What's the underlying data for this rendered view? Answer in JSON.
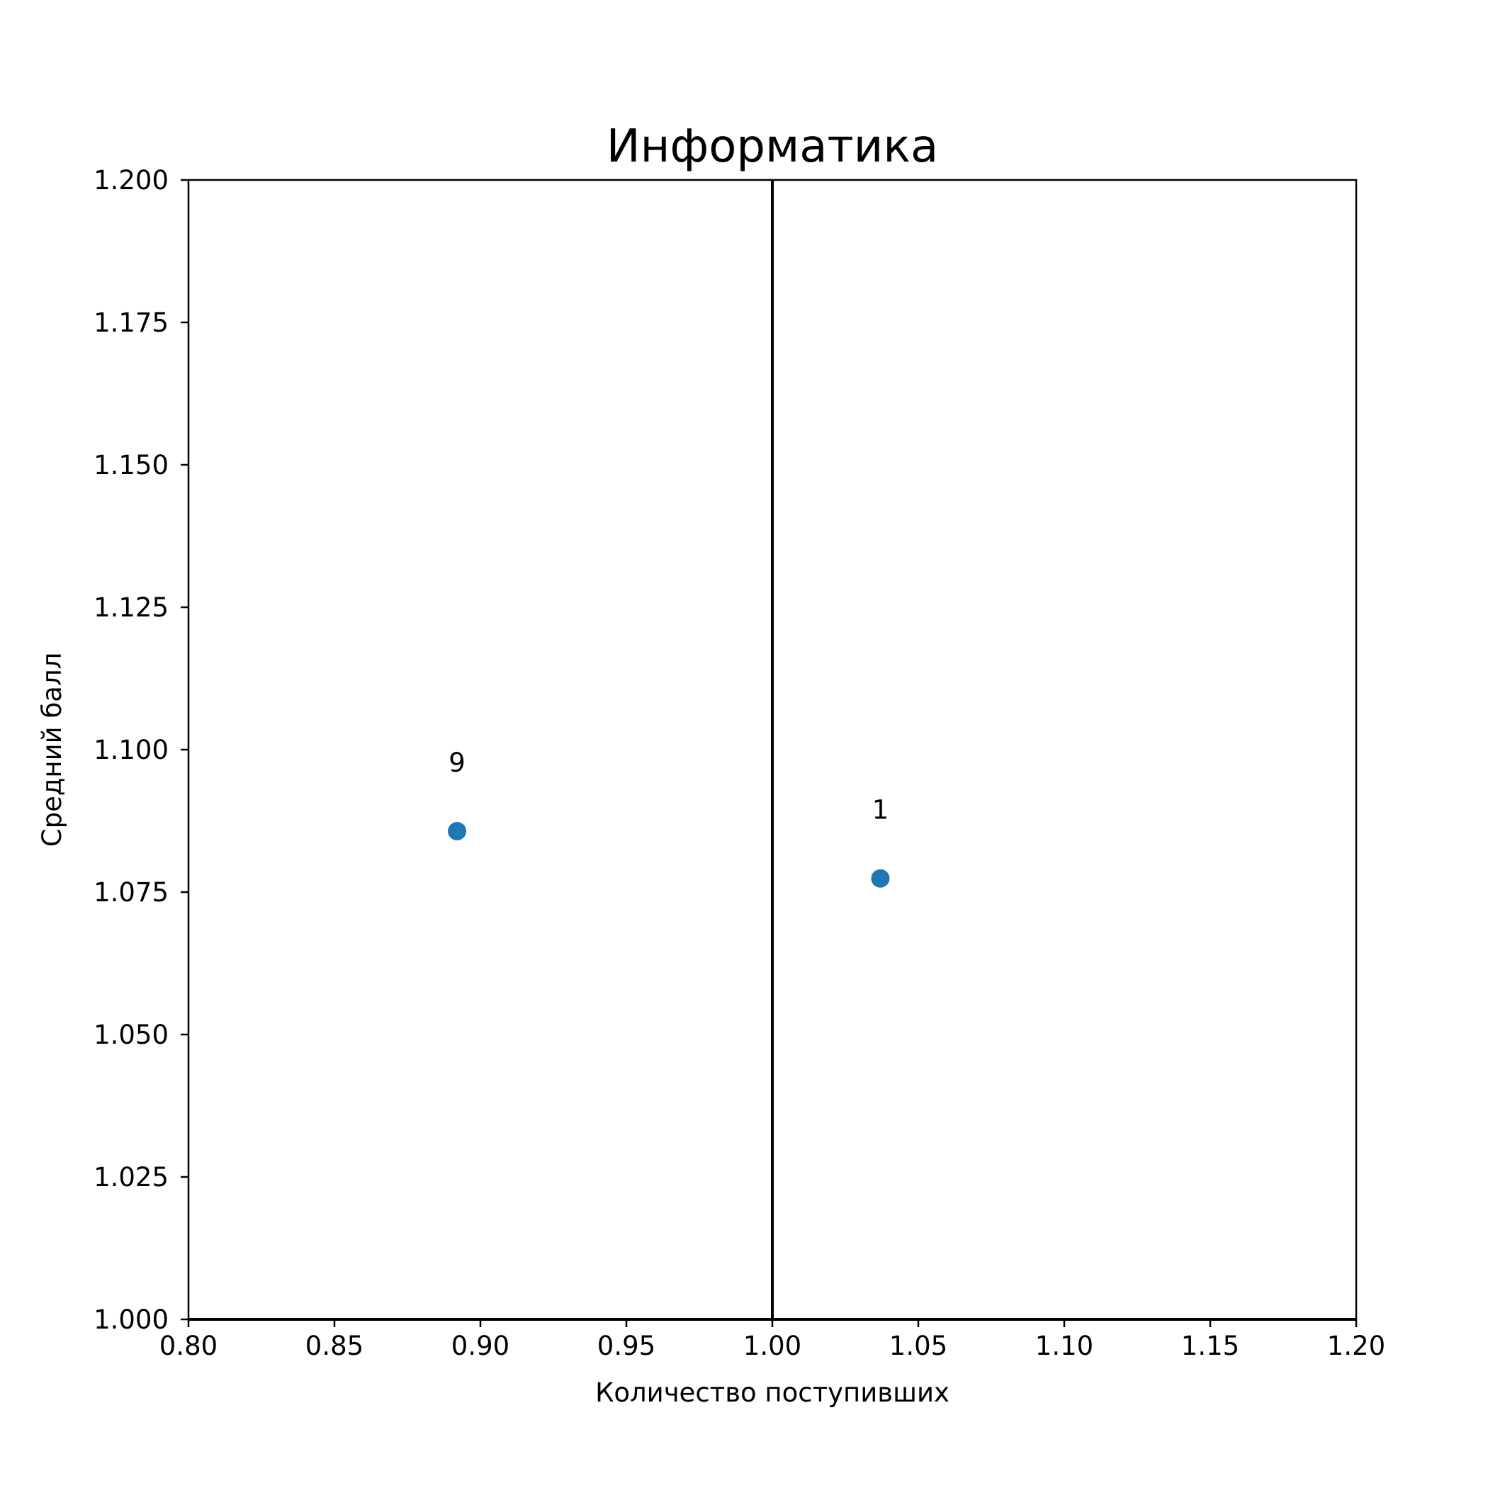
{
  "chart_data": {
    "type": "scatter",
    "title": "Информатика",
    "xlabel": "Количество поступивших",
    "ylabel": "Средний балл",
    "xlim": [
      0.8,
      1.2
    ],
    "ylim": [
      1.0,
      1.2
    ],
    "x_ticks": [
      "0.80",
      "0.85",
      "0.90",
      "0.95",
      "1.00",
      "1.05",
      "1.10",
      "1.15",
      "1.20"
    ],
    "y_ticks": [
      "1.000",
      "1.025",
      "1.050",
      "1.075",
      "1.100",
      "1.125",
      "1.150",
      "1.175",
      "1.200"
    ],
    "grid": false,
    "reference_lines": [
      {
        "orientation": "vertical",
        "x": 1.0
      },
      {
        "orientation": "horizontal",
        "y": 1.0
      }
    ],
    "points": [
      {
        "x": 0.892,
        "y": 1.0857,
        "label": "9"
      },
      {
        "x": 1.037,
        "y": 1.0774,
        "label": "1"
      }
    ],
    "colors": {
      "marker": "#1f77b4",
      "axes": "#000000"
    }
  }
}
